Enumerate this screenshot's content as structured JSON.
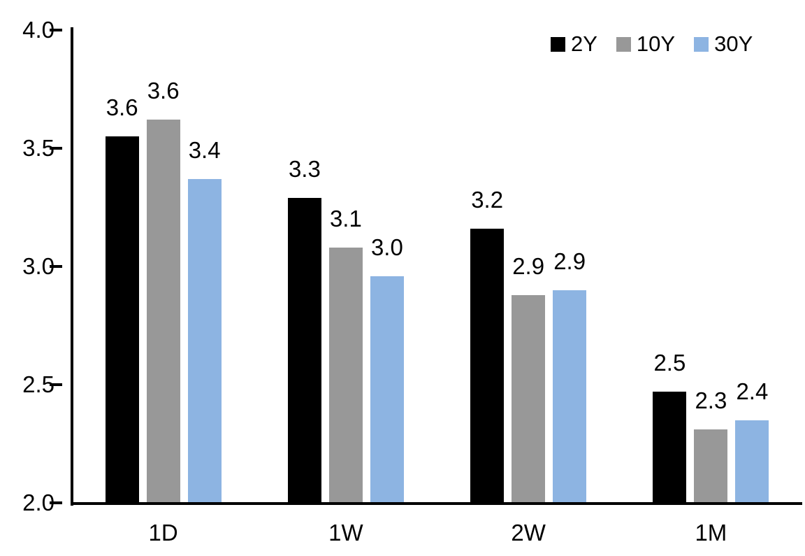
{
  "chart_data": {
    "type": "bar",
    "title": "",
    "xlabel": "",
    "ylabel": "",
    "categories": [
      "1D",
      "1W",
      "2W",
      "1M"
    ],
    "series": [
      {
        "name": "2Y",
        "color": "#000000",
        "values": [
          3.55,
          3.29,
          3.16,
          2.47
        ],
        "labels": [
          "3.6",
          "3.3",
          "3.2",
          "2.5"
        ]
      },
      {
        "name": "10Y",
        "color": "#989898",
        "values": [
          3.62,
          3.08,
          2.88,
          2.31
        ],
        "labels": [
          "3.6",
          "3.1",
          "2.9",
          "2.3"
        ]
      },
      {
        "name": "30Y",
        "color": "#8DB4E2",
        "values": [
          3.37,
          2.96,
          2.9,
          2.35
        ],
        "labels": [
          "3.4",
          "3.0",
          "2.9",
          "2.4"
        ]
      }
    ],
    "y_axis": {
      "min": 2.0,
      "max": 4.0,
      "tick_values": [
        4.0,
        3.5,
        3.0,
        2.5,
        2.0
      ],
      "tick_labels": [
        "4.0",
        "3.5",
        "3.0",
        "2.5",
        "2.0"
      ]
    },
    "legend": {
      "position": "top-right",
      "entries": [
        "2Y",
        "10Y",
        "30Y"
      ]
    },
    "grid": false,
    "axis_color": "#000000",
    "background_color": "#ffffff",
    "data_labels_shown": true
  }
}
